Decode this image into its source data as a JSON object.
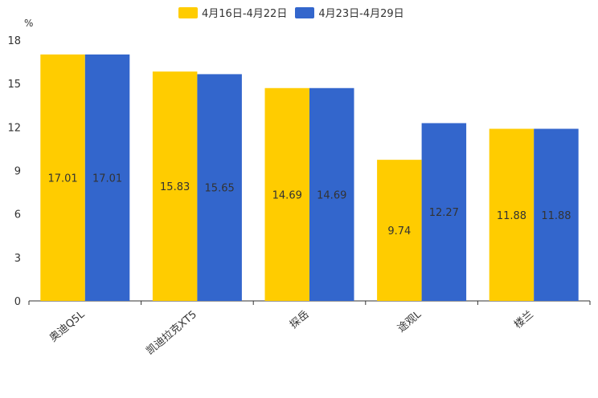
{
  "chart_data": {
    "type": "bar",
    "unit_label": "%",
    "categories": [
      "奥迪Q5L",
      "凯迪拉克XT5",
      "探岳",
      "途观L",
      "楼兰"
    ],
    "series": [
      {
        "name": "4月16日-4月22日",
        "color": "#ffcc00",
        "values": [
          17.01,
          15.83,
          14.69,
          9.74,
          11.88
        ]
      },
      {
        "name": "4月23日-4月29日",
        "color": "#3366cc",
        "values": [
          17.01,
          15.65,
          14.69,
          12.27,
          11.88
        ]
      }
    ],
    "ylim": [
      0,
      18
    ],
    "yticks": [
      0,
      3,
      6,
      9,
      12,
      15,
      18
    ],
    "legend_position": "top-center"
  }
}
